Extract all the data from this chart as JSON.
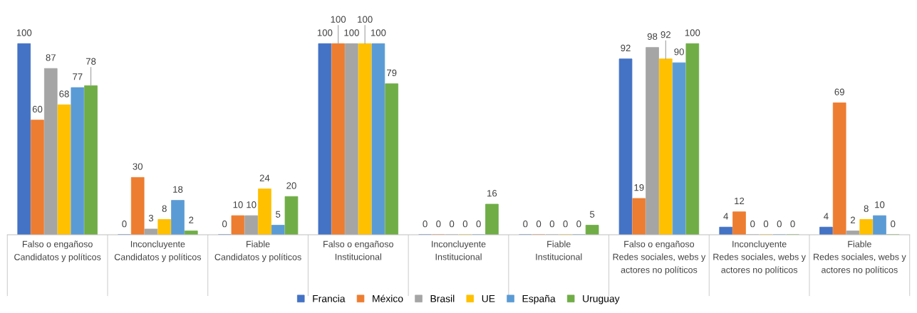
{
  "chart_data": {
    "type": "bar",
    "categories": [
      "Falso o engañoso\nCandidatos y políticos",
      "Inconcluyente\nCandidatos y políticos",
      "Fiable\nCandidatos y políticos",
      "Falso o engañoso\nInstitucional",
      "Inconcluyente\nInstitucional",
      "Fiable\nInstitucional",
      "Falso o engañoso\nRedes sociales, webs y\nactores no políticos",
      "Inconcluyente\nRedes sociales, webs y\nactores no políticos",
      "Fiable\nRedes sociales, webs y\nactores no políticos"
    ],
    "series": [
      {
        "name": "Francia",
        "color": "#4472c4",
        "values": [
          100,
          0,
          0,
          100,
          0,
          0,
          92,
          4,
          4
        ]
      },
      {
        "name": "México",
        "color": "#ed7d31",
        "values": [
          60,
          30,
          10,
          100,
          0,
          0,
          19,
          12,
          69
        ]
      },
      {
        "name": "Brasil",
        "color": "#a5a5a5",
        "values": [
          87,
          3,
          10,
          100,
          0,
          0,
          98,
          0,
          2
        ]
      },
      {
        "name": "UE",
        "color": "#ffc000",
        "values": [
          68,
          8,
          24,
          100,
          0,
          0,
          92,
          0,
          8
        ]
      },
      {
        "name": "España",
        "color": "#5b9bd5",
        "values": [
          77,
          18,
          5,
          100,
          0,
          0,
          90,
          0,
          10
        ]
      },
      {
        "name": "Uruguay",
        "color": "#70ad47",
        "values": [
          78,
          2,
          20,
          79,
          16,
          5,
          100,
          0,
          0
        ]
      }
    ],
    "data_labels": true,
    "legend": "bottom",
    "grid": false
  }
}
